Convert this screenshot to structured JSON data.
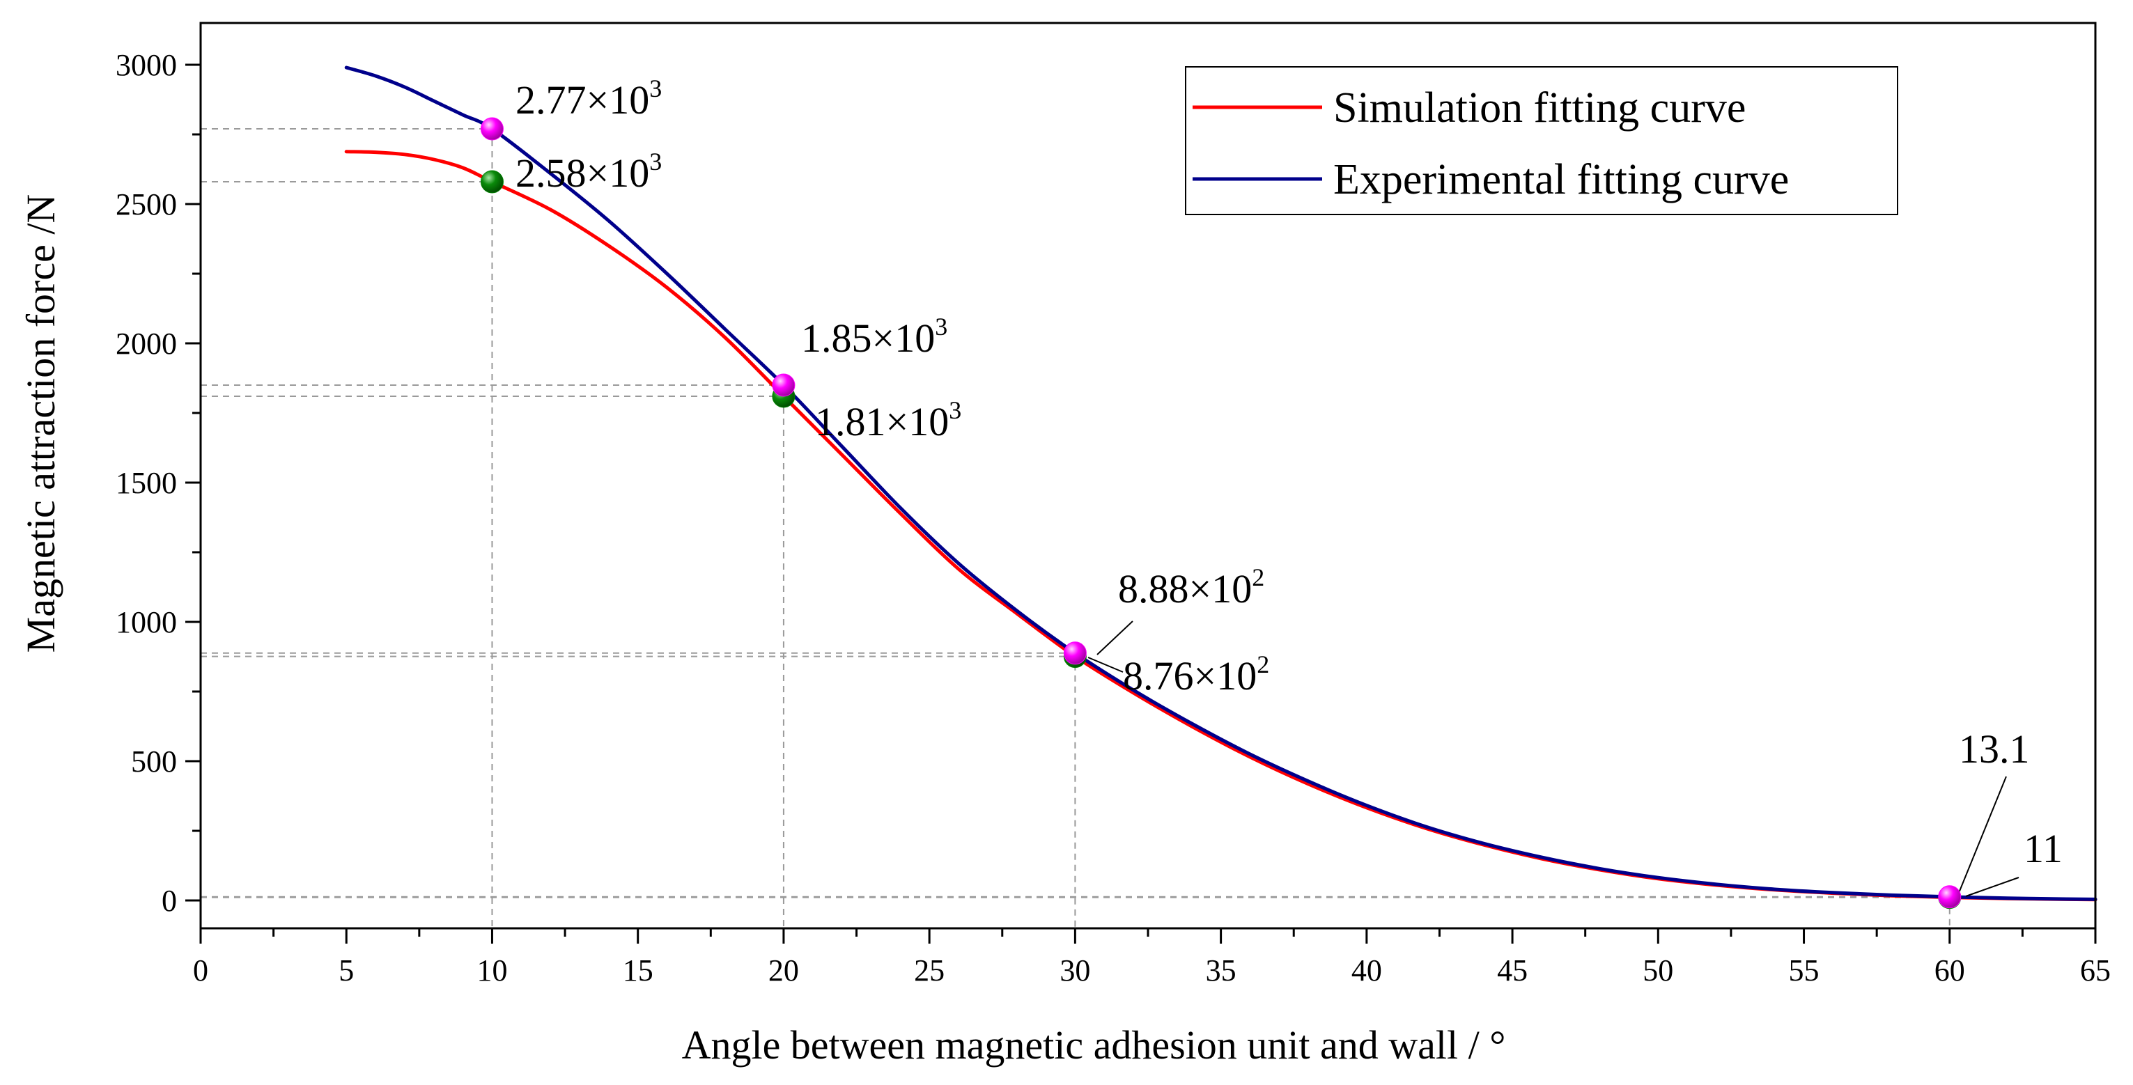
{
  "chart_data": {
    "type": "line",
    "title": "",
    "xlabel": "Angle between magnetic adhesion unit and wall /  °",
    "ylabel": "Magnetic attraction force /N",
    "xlim": [
      0,
      65
    ],
    "ylim": [
      -100,
      3150
    ],
    "x_ticks": [
      0,
      5,
      10,
      15,
      20,
      25,
      30,
      35,
      40,
      45,
      50,
      55,
      60,
      65
    ],
    "x_tick_labels": [
      "0",
      "5",
      "10",
      "15",
      "20",
      "25",
      "30",
      "35",
      "40",
      "45",
      "50",
      "55",
      "60",
      "65"
    ],
    "y_ticks": [
      0,
      500,
      1000,
      1500,
      2000,
      2500,
      3000
    ],
    "y_tick_labels": [
      "0",
      "500",
      "1000",
      "1500",
      "2000",
      "2500",
      "3000"
    ],
    "grid": false,
    "legend_position": "top-right",
    "series": [
      {
        "name": "Simulation fitting curve",
        "color": "#ff0000",
        "x": [
          5,
          6,
          7,
          8,
          9,
          10,
          12,
          14,
          16,
          18,
          20,
          22,
          24,
          26,
          28,
          30,
          32,
          34,
          36,
          38,
          40,
          42,
          44,
          46,
          48,
          50,
          52,
          54,
          56,
          58,
          60,
          62,
          64,
          65
        ],
        "y": [
          2688,
          2686,
          2678,
          2660,
          2630,
          2580,
          2480,
          2350,
          2200,
          2020,
          1810,
          1600,
          1390,
          1190,
          1030,
          876,
          745,
          625,
          515,
          418,
          333,
          260,
          200,
          150,
          110,
          78,
          55,
          38,
          26,
          17,
          11,
          7,
          4,
          3
        ]
      },
      {
        "name": "Experimental fitting curve",
        "color": "#00008b",
        "x": [
          5,
          6,
          7,
          8,
          9,
          10,
          12,
          14,
          16,
          18,
          20,
          22,
          24,
          26,
          28,
          30,
          32,
          34,
          36,
          38,
          40,
          42,
          44,
          46,
          48,
          50,
          52,
          54,
          56,
          58,
          60,
          62,
          64,
          65
        ],
        "y": [
          2990,
          2960,
          2920,
          2870,
          2820,
          2770,
          2610,
          2440,
          2250,
          2050,
          1850,
          1630,
          1410,
          1210,
          1040,
          888,
          755,
          635,
          525,
          428,
          341,
          266,
          205,
          155,
          114,
          82,
          58,
          40,
          28,
          19,
          13.1,
          8,
          5,
          4
        ]
      }
    ],
    "highlighted_points": [
      {
        "x": 10,
        "y": 2770,
        "color": "#ff00ff",
        "series": "Experimental fitting curve"
      },
      {
        "x": 10,
        "y": 2580,
        "color": "#008000",
        "series": "Simulation fitting curve"
      },
      {
        "x": 20,
        "y": 1850,
        "color": "#ff00ff",
        "series": "Experimental fitting curve"
      },
      {
        "x": 20,
        "y": 1810,
        "color": "#008000",
        "series": "Simulation fitting curve"
      },
      {
        "x": 30,
        "y": 888,
        "color": "#ff00ff",
        "series": "Experimental fitting curve"
      },
      {
        "x": 30,
        "y": 876,
        "color": "#008000",
        "series": "Simulation fitting curve"
      },
      {
        "x": 60,
        "y": 13.1,
        "color": "#ff00ff",
        "series": "Experimental fitting curve"
      },
      {
        "x": 60,
        "y": 11,
        "color": "#008000",
        "series": "Simulation fitting curve"
      }
    ],
    "annotations": [
      {
        "base": "2.77×10",
        "sup": "3"
      },
      {
        "base": "2.58×10",
        "sup": "3"
      },
      {
        "base": "1.85×10",
        "sup": "3"
      },
      {
        "base": "1.81×10",
        "sup": "3"
      },
      {
        "base": "8.88×10",
        "sup": "2"
      },
      {
        "base": "8.76×10",
        "sup": "2"
      },
      {
        "base": "13.1",
        "sup": ""
      },
      {
        "base": "11",
        "sup": ""
      }
    ]
  }
}
